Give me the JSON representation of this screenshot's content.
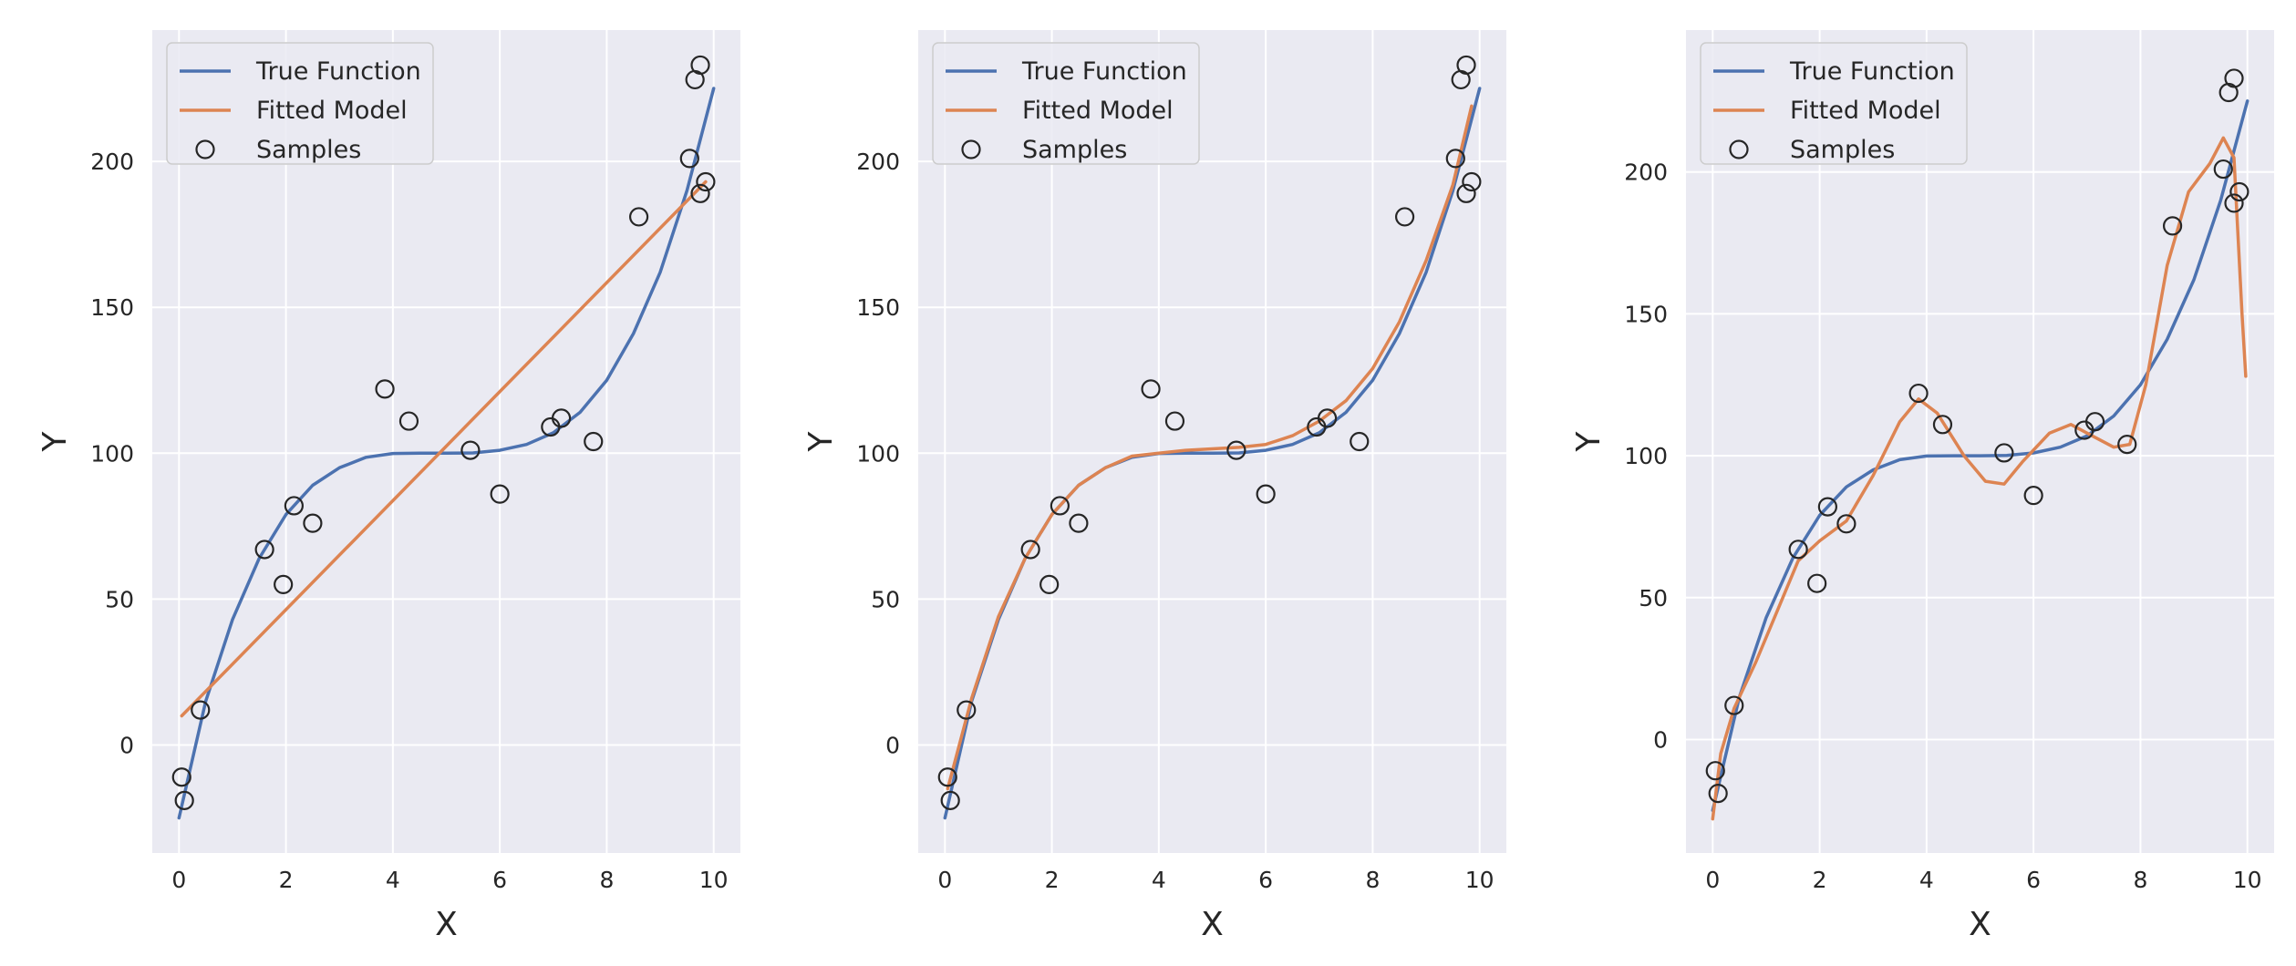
{
  "chart_data": [
    {
      "type": "line",
      "xlabel": "X",
      "ylabel": "Y",
      "xlim": [
        -0.5,
        10.5
      ],
      "ylim": [
        -37,
        245
      ],
      "xticks": [
        0,
        2,
        4,
        6,
        8,
        10
      ],
      "yticks": [
        0,
        50,
        100,
        150,
        200
      ],
      "grid": true,
      "legend": {
        "position": "top-left",
        "entries": [
          "True Function",
          "Fitted Model",
          "Samples"
        ]
      },
      "series": [
        {
          "name": "True Function",
          "kind": "line",
          "color": "#4c72b0",
          "points": [
            [
              0,
              -25
            ],
            [
              0.5,
              15
            ],
            [
              1,
              43
            ],
            [
              1.5,
              64
            ],
            [
              2,
              79
            ],
            [
              2.5,
              89
            ],
            [
              3,
              95
            ],
            [
              3.5,
              98.6
            ],
            [
              4,
              99.9
            ],
            [
              4.5,
              100
            ],
            [
              5,
              100
            ],
            [
              5.5,
              100.1
            ],
            [
              6,
              101
            ],
            [
              6.5,
              103
            ],
            [
              7,
              107
            ],
            [
              7.5,
              114
            ],
            [
              8,
              125
            ],
            [
              8.5,
              141
            ],
            [
              9,
              162
            ],
            [
              9.5,
              190
            ],
            [
              10,
              225
            ]
          ]
        },
        {
          "name": "Fitted Model",
          "kind": "line",
          "color": "#dd8452",
          "points": [
            [
              0.05,
              10
            ],
            [
              9.85,
              193
            ]
          ]
        },
        {
          "name": "Samples",
          "kind": "scatter",
          "color": "#262626",
          "points": [
            [
              0.05,
              -11
            ],
            [
              0.1,
              -19
            ],
            [
              0.4,
              12
            ],
            [
              1.6,
              67
            ],
            [
              1.95,
              55
            ],
            [
              2.15,
              82
            ],
            [
              2.5,
              76
            ],
            [
              3.85,
              122
            ],
            [
              4.3,
              111
            ],
            [
              5.45,
              101
            ],
            [
              6,
              86
            ],
            [
              6.95,
              109
            ],
            [
              7.15,
              112
            ],
            [
              7.75,
              104
            ],
            [
              8.6,
              181
            ],
            [
              9.55,
              201
            ],
            [
              9.65,
              228
            ],
            [
              9.75,
              233
            ],
            [
              9.75,
              189
            ],
            [
              9.85,
              193
            ]
          ]
        }
      ]
    },
    {
      "type": "line",
      "xlabel": "X",
      "ylabel": "Y",
      "xlim": [
        -0.5,
        10.5
      ],
      "ylim": [
        -37,
        245
      ],
      "xticks": [
        0,
        2,
        4,
        6,
        8,
        10
      ],
      "yticks": [
        0,
        50,
        100,
        150,
        200
      ],
      "grid": true,
      "legend": {
        "position": "top-left",
        "entries": [
          "True Function",
          "Fitted Model",
          "Samples"
        ]
      },
      "series": [
        {
          "name": "True Function",
          "kind": "line",
          "color": "#4c72b0",
          "points": [
            [
              0,
              -25
            ],
            [
              0.5,
              15
            ],
            [
              1,
              43
            ],
            [
              1.5,
              64
            ],
            [
              2,
              79
            ],
            [
              2.5,
              89
            ],
            [
              3,
              95
            ],
            [
              3.5,
              98.6
            ],
            [
              4,
              99.9
            ],
            [
              4.5,
              100
            ],
            [
              5,
              100
            ],
            [
              5.5,
              100.1
            ],
            [
              6,
              101
            ],
            [
              6.5,
              103
            ],
            [
              7,
              107
            ],
            [
              7.5,
              114
            ],
            [
              8,
              125
            ],
            [
              8.5,
              141
            ],
            [
              9,
              162
            ],
            [
              9.5,
              190
            ],
            [
              10,
              225
            ]
          ]
        },
        {
          "name": "Fitted Model",
          "kind": "line",
          "color": "#dd8452",
          "points": [
            [
              0.05,
              -15
            ],
            [
              0.5,
              16
            ],
            [
              1,
              44
            ],
            [
              1.5,
              64
            ],
            [
              2,
              79
            ],
            [
              2.5,
              89
            ],
            [
              3,
              95
            ],
            [
              3.5,
              99
            ],
            [
              4,
              100
            ],
            [
              4.5,
              101
            ],
            [
              5,
              101.5
            ],
            [
              5.5,
              102
            ],
            [
              6,
              103
            ],
            [
              6.5,
              106
            ],
            [
              7,
              111
            ],
            [
              7.5,
              118
            ],
            [
              8,
              129
            ],
            [
              8.5,
              145
            ],
            [
              9,
              166
            ],
            [
              9.5,
              192
            ],
            [
              9.85,
              219
            ]
          ]
        },
        {
          "name": "Samples",
          "kind": "scatter",
          "color": "#262626",
          "points": [
            [
              0.05,
              -11
            ],
            [
              0.1,
              -19
            ],
            [
              0.4,
              12
            ],
            [
              1.6,
              67
            ],
            [
              1.95,
              55
            ],
            [
              2.15,
              82
            ],
            [
              2.5,
              76
            ],
            [
              3.85,
              122
            ],
            [
              4.3,
              111
            ],
            [
              5.45,
              101
            ],
            [
              6,
              86
            ],
            [
              6.95,
              109
            ],
            [
              7.15,
              112
            ],
            [
              7.75,
              104
            ],
            [
              8.6,
              181
            ],
            [
              9.55,
              201
            ],
            [
              9.65,
              228
            ],
            [
              9.75,
              233
            ],
            [
              9.75,
              189
            ],
            [
              9.85,
              193
            ]
          ]
        }
      ]
    },
    {
      "type": "line",
      "xlabel": "X",
      "ylabel": "Y",
      "xlim": [
        -0.5,
        10.5
      ],
      "ylim": [
        -40,
        250
      ],
      "xticks": [
        0,
        2,
        4,
        6,
        8,
        10
      ],
      "yticks": [
        0,
        50,
        100,
        150,
        200
      ],
      "grid": true,
      "legend": {
        "position": "top-left",
        "entries": [
          "True Function",
          "Fitted Model",
          "Samples"
        ]
      },
      "series": [
        {
          "name": "True Function",
          "kind": "line",
          "color": "#4c72b0",
          "points": [
            [
              0,
              -25
            ],
            [
              0.5,
              15
            ],
            [
              1,
              43
            ],
            [
              1.5,
              64
            ],
            [
              2,
              79
            ],
            [
              2.5,
              89
            ],
            [
              3,
              95
            ],
            [
              3.5,
              98.6
            ],
            [
              4,
              99.9
            ],
            [
              4.5,
              100
            ],
            [
              5,
              100
            ],
            [
              5.5,
              100.1
            ],
            [
              6,
              101
            ],
            [
              6.5,
              103
            ],
            [
              7,
              107
            ],
            [
              7.5,
              114
            ],
            [
              8,
              125
            ],
            [
              8.5,
              141
            ],
            [
              9,
              162
            ],
            [
              9.5,
              190
            ],
            [
              10,
              225
            ]
          ]
        },
        {
          "name": "Fitted Model",
          "kind": "line",
          "color": "#dd8452",
          "points": [
            [
              0,
              -28
            ],
            [
              0.15,
              -5
            ],
            [
              0.4,
              11
            ],
            [
              0.8,
              27
            ],
            [
              1.2,
              45
            ],
            [
              1.6,
              63
            ],
            [
              2,
              70
            ],
            [
              2.5,
              77
            ],
            [
              3,
              93
            ],
            [
              3.5,
              112
            ],
            [
              3.85,
              120
            ],
            [
              4.2,
              115
            ],
            [
              4.7,
              100
            ],
            [
              5.1,
              91
            ],
            [
              5.45,
              90
            ],
            [
              5.8,
              98
            ],
            [
              6.3,
              108
            ],
            [
              6.7,
              111
            ],
            [
              7.1,
              107
            ],
            [
              7.5,
              103
            ],
            [
              7.8,
              104
            ],
            [
              8.1,
              125
            ],
            [
              8.5,
              167
            ],
            [
              8.9,
              193
            ],
            [
              9.3,
              203
            ],
            [
              9.55,
              212
            ],
            [
              9.75,
              205
            ],
            [
              9.9,
              150
            ],
            [
              9.97,
              128
            ]
          ]
        },
        {
          "name": "Samples",
          "kind": "scatter",
          "color": "#262626",
          "points": [
            [
              0.05,
              -11
            ],
            [
              0.1,
              -19
            ],
            [
              0.4,
              12
            ],
            [
              1.6,
              67
            ],
            [
              1.95,
              55
            ],
            [
              2.15,
              82
            ],
            [
              2.5,
              76
            ],
            [
              3.85,
              122
            ],
            [
              4.3,
              111
            ],
            [
              5.45,
              101
            ],
            [
              6,
              86
            ],
            [
              6.95,
              109
            ],
            [
              7.15,
              112
            ],
            [
              7.75,
              104
            ],
            [
              8.6,
              181
            ],
            [
              9.55,
              201
            ],
            [
              9.65,
              228
            ],
            [
              9.75,
              233
            ],
            [
              9.75,
              189
            ],
            [
              9.85,
              193
            ]
          ]
        }
      ]
    }
  ]
}
